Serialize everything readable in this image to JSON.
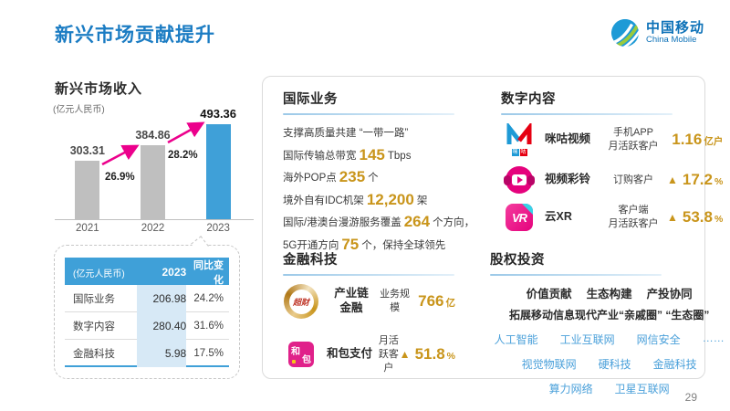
{
  "slide": {
    "title": "新兴市场贡献提升",
    "page_number": "29"
  },
  "logo": {
    "name_zh": "中国移动",
    "name_en": "China Mobile"
  },
  "colors": {
    "title_blue": "#1B7CC3",
    "bar_gray": "#BFBFBF",
    "bar_blue": "#3FA0D8",
    "arrow_pink": "#EC008C",
    "gold": "#C9951B",
    "link_blue": "#4AA0DA",
    "table_header_blue": "#3FA0D8",
    "table_highlight": "#D7E9F6"
  },
  "revenue_chart": {
    "title": "新兴市场收入",
    "unit_label": "(亿元人民币)",
    "chart_data": {
      "type": "bar",
      "categories": [
        "2021",
        "2022",
        "2023"
      ],
      "values": [
        303.31,
        384.86,
        493.36
      ],
      "value_labels": [
        "303.31",
        "384.86",
        "493.36"
      ],
      "growth_labels": [
        "26.9%",
        "28.2%"
      ],
      "bar_colors": [
        "#BFBFBF",
        "#BFBFBF",
        "#3FA0D8"
      ],
      "ylabel": "亿元人民币",
      "ylim": [
        0,
        520
      ],
      "grid": false,
      "legend": false
    }
  },
  "breakdown_table": {
    "headers": [
      "(亿元人民币)",
      "2023",
      "同比变化"
    ],
    "rows": [
      {
        "label": "国际业务",
        "value": "206.98",
        "change": "24.2%"
      },
      {
        "label": "数字内容",
        "value": "280.40",
        "change": "31.6%"
      },
      {
        "label": "金融科技",
        "value": "5.98",
        "change": "17.5%"
      }
    ]
  },
  "international": {
    "title": "国际业务",
    "intro": "支撑高质量共建 “一带一路”",
    "stats": [
      {
        "pre": "国际传输总带宽",
        "num": "145",
        "suf": "Tbps"
      },
      {
        "pre": "海外POP点",
        "num": "235",
        "suf": "个"
      },
      {
        "pre": "境外自有IDC机架",
        "num": "12,200",
        "suf": "架"
      },
      {
        "pre": "国际/港澳台漫游服务覆盖",
        "num": "264",
        "suf": "个方向，"
      },
      {
        "pre": "5G开通方向",
        "num": "75",
        "suf": "个，保持全球领先"
      }
    ]
  },
  "digital": {
    "title": "数字内容",
    "items": [
      {
        "icon": "migu-video-icon",
        "name": "咪咕视频",
        "wordmark": [
          "咪",
          "咕"
        ],
        "metric": "手机APP\n月活跃客户",
        "arrow": "",
        "value": "1.16",
        "unit": "亿户"
      },
      {
        "icon": "video-ringtone-icon",
        "name": "视频彩铃",
        "metric": "订购客户",
        "arrow": "▲",
        "value": "17.2",
        "unit": "%"
      },
      {
        "icon": "cloud-xr-icon",
        "name": "云XR",
        "icon_text": "VR",
        "metric": "客户端\n月活跃客户",
        "arrow": "▲",
        "value": "53.8",
        "unit": "%"
      }
    ]
  },
  "fintech": {
    "title": "金融科技",
    "items": [
      {
        "icon": "chaocai-icon",
        "name": "产业链\n金融",
        "icon_text": "超财",
        "metric": "业务规模",
        "arrow": "",
        "value": "766",
        "unit": "亿"
      },
      {
        "icon": "hebao-pay-icon",
        "name": "和包支付",
        "icon_chars": [
          "和",
          "包"
        ],
        "metric": "月活跃客户",
        "arrow": "▲",
        "value": "51.8",
        "unit": "%"
      }
    ]
  },
  "equity": {
    "title": "股权投资",
    "keywords": [
      "价值贡献",
      "生态构建",
      "产投协同"
    ],
    "line2": "拓展移动信息现代产业“亲戚圈” “生态圈”",
    "link_rows": [
      [
        "人工智能",
        "工业互联网",
        "网信安全",
        "……"
      ],
      [
        "视觉物联网",
        "硬科技",
        "金融科技"
      ],
      [
        "算力网络",
        "卫星互联网"
      ]
    ]
  }
}
